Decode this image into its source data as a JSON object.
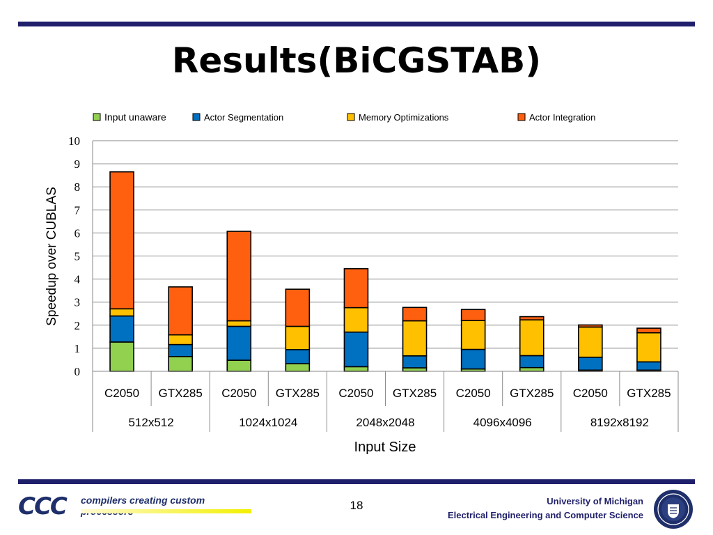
{
  "slide": {
    "title": "Results(BiCGSTAB)",
    "page_number": "18",
    "footer_line1": "University of Michigan",
    "footer_line2": "Electrical Engineering and Computer Science",
    "logo_text": "CCC",
    "logo_tagline": "compilers creating custom processors"
  },
  "colors": {
    "input_unaware": "#92d050",
    "actor_segmentation": "#0070c0",
    "memory_optimizations": "#ffc000",
    "actor_integration": "#ff6010",
    "rule": "#1f1f6b"
  },
  "chart_data": {
    "type": "bar",
    "stacked": true,
    "title": "",
    "xlabel": "Input Size",
    "ylabel": "Speedup over CUBLAS",
    "ylim": [
      0,
      10
    ],
    "yticks": [
      "0",
      "1",
      "2",
      "3",
      "4",
      "5",
      "6",
      "7",
      "8",
      "9",
      "10"
    ],
    "grid": true,
    "legend_position": "top",
    "categories": [
      "C2050",
      "GTX285",
      "C2050",
      "GTX285",
      "C2050",
      "GTX285",
      "C2050",
      "GTX285",
      "C2050",
      "GTX285"
    ],
    "groups": [
      "512x512",
      "1024x1024",
      "2048x2048",
      "4096x4096",
      "8192x8192"
    ],
    "series": [
      {
        "name": "Input unaware",
        "values": [
          1.27,
          0.64,
          0.48,
          0.33,
          0.2,
          0.15,
          0.1,
          0.16,
          0.05,
          0.05
        ]
      },
      {
        "name": "Actor Segmentation",
        "values": [
          1.13,
          0.52,
          1.47,
          0.61,
          1.5,
          0.52,
          0.85,
          0.52,
          0.56,
          0.36
        ]
      },
      {
        "name": "Memory Optimizations",
        "values": [
          0.31,
          0.42,
          0.24,
          1.01,
          1.06,
          1.52,
          1.25,
          1.55,
          1.31,
          1.26
        ]
      },
      {
        "name": "Actor Integration",
        "values": [
          5.94,
          2.08,
          3.88,
          1.61,
          1.69,
          0.58,
          0.48,
          0.14,
          0.09,
          0.2
        ]
      }
    ]
  }
}
